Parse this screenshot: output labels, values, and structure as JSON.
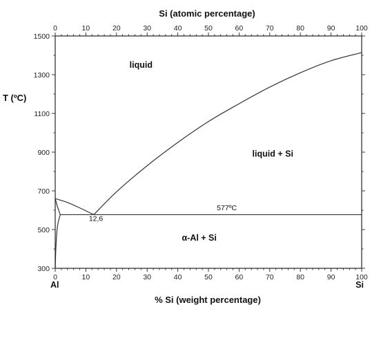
{
  "chart_data": {
    "type": "line",
    "top_axis_title": "Si (atomic percentage)",
    "xlabel": "% Si (weight percentage)",
    "ylabel": "T (ºC)",
    "xlim": [
      0,
      100
    ],
    "ylim": [
      300,
      1500
    ],
    "x_ticks": [
      0,
      10,
      20,
      30,
      40,
      50,
      60,
      70,
      80,
      90,
      100
    ],
    "y_ticks": [
      300,
      500,
      700,
      900,
      1100,
      1300,
      1500
    ],
    "x_end_labels": {
      "left": "Al",
      "right": "Si"
    },
    "grid": false,
    "regions": [
      {
        "label": "liquid",
        "x": 28,
        "y": 1335
      },
      {
        "label": "liquid + Si",
        "x": 71,
        "y": 877
      },
      {
        "label": "α-Al + Si",
        "x": 47,
        "y": 442
      }
    ],
    "annotations": [
      {
        "text": "12,6",
        "x": 13.3,
        "y": 545
      },
      {
        "text": "577ºC",
        "x": 56,
        "y": 600
      }
    ],
    "series": [
      {
        "values": [
          [
            0,
            660
          ],
          [
            4,
            640
          ],
          [
            8,
            612
          ],
          [
            12.6,
            577
          ]
        ]
      },
      {
        "values": [
          [
            12.6,
            577
          ],
          [
            20,
            695
          ],
          [
            30,
            830
          ],
          [
            40,
            950
          ],
          [
            50,
            1058
          ],
          [
            60,
            1150
          ],
          [
            70,
            1236
          ],
          [
            80,
            1310
          ],
          [
            90,
            1372
          ],
          [
            100,
            1414
          ]
        ]
      },
      {
        "values": [
          [
            0,
            660
          ],
          [
            0.7,
            620
          ],
          [
            1.65,
            577
          ]
        ]
      },
      {
        "values": [
          [
            1.65,
            577
          ],
          [
            100,
            577
          ]
        ]
      },
      {
        "values": [
          [
            1.65,
            577
          ],
          [
            1.0,
            540
          ],
          [
            0.6,
            500
          ],
          [
            0.3,
            430
          ],
          [
            0.15,
            380
          ],
          [
            0,
            300
          ]
        ]
      }
    ]
  }
}
